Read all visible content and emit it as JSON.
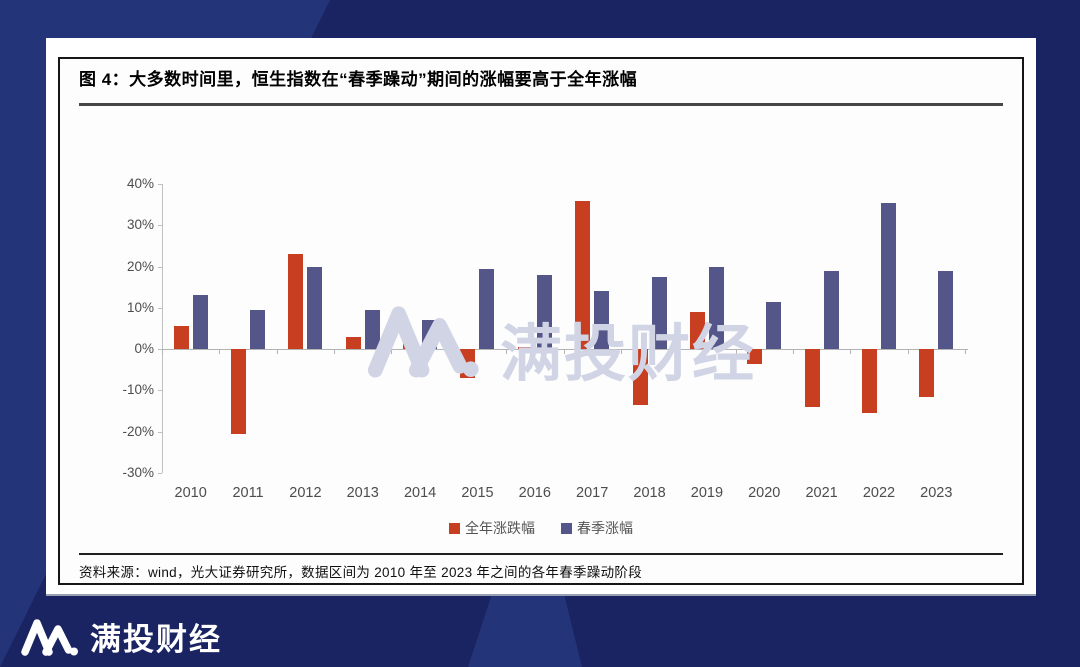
{
  "brand": {
    "name": "满投财经"
  },
  "figure": {
    "title": "图 4：大多数时间里，恒生指数在“春季躁动”期间的涨幅要高于全年涨幅",
    "source": "资料来源：wind，光大证券研究所，数据区间为 2010 年至 2023 年之间的各年春季躁动阶段"
  },
  "watermark": {
    "icon": "mountain-logo-icon",
    "text": "满投财经"
  },
  "chart_data": {
    "type": "bar",
    "categories": [
      "2010",
      "2011",
      "2012",
      "2013",
      "2014",
      "2015",
      "2016",
      "2017",
      "2018",
      "2019",
      "2020",
      "2021",
      "2022",
      "2023"
    ],
    "series": [
      {
        "name": "全年涨跌幅",
        "color": "#c73e20",
        "values": [
          5.5,
          -20.5,
          23,
          3,
          1.5,
          -7,
          0.5,
          36,
          -13.5,
          9,
          -3.5,
          -14,
          -15.5,
          -11.5
        ]
      },
      {
        "name": "春季涨幅",
        "color": "#54568a",
        "values": [
          13,
          9.5,
          20,
          9.5,
          7,
          19.5,
          18,
          14,
          17.5,
          20,
          11.5,
          19,
          35.5,
          19
        ]
      }
    ],
    "ylim": [
      -30,
      40
    ],
    "ytick_values": [
      40,
      30,
      20,
      10,
      0,
      -10,
      -20,
      -30
    ],
    "ytick_labels": [
      "40%",
      "30%",
      "20%",
      "10%",
      "0%",
      "-10%",
      "-20%",
      "-30%"
    ],
    "grid": false,
    "legend_position": "bottom-center",
    "axis_color": "#bfbfbf",
    "label_color": "#4d4d4d"
  }
}
